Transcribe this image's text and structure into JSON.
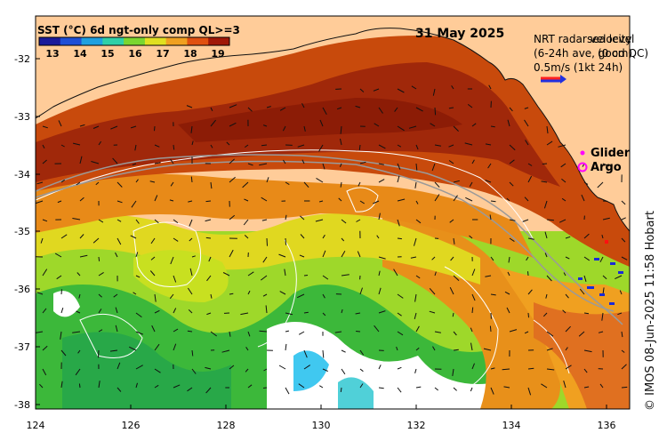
{
  "map": {
    "date_title": "31 May 2025",
    "legend_title": "SST (°C) 6d ngt-only comp QL>=3",
    "colorbar_ticks": [
      "13",
      "14",
      "15",
      "16",
      "17",
      "18",
      "19"
    ],
    "colorbar_colors": [
      "#1a1a9a",
      "#1f4fd6",
      "#1fa0e0",
      "#2fd0a8",
      "#7ad630",
      "#e0e020",
      "#f0a020",
      "#e05010",
      "#a01808"
    ],
    "vector_legend": {
      "line1": "NRT radar velocity",
      "line2": "(6-24h ave, good QC)",
      "line3": "0.5m/s (1kt 24h)",
      "overlay_line1": "sea level",
      "overlay_line2": "(0 cm)"
    },
    "markers": {
      "glider_label": "Glider",
      "argo_label": "Argo",
      "glider_color": "#ff00ff",
      "argo_color": "#ff00ff"
    },
    "credit": "© IMOS 08-Jun-2025 11:58 Hobart",
    "lon_ticks": [
      "124",
      "126",
      "128",
      "130",
      "132",
      "134",
      "136"
    ],
    "lat_ticks": [
      "-32",
      "-33",
      "-34",
      "-35",
      "-36",
      "-37",
      "-38"
    ],
    "land_color": "#ffcc99",
    "water_colors": {
      "warm": "#b02a08",
      "mid": "#e07a18",
      "cool": "#a8e020",
      "cold": "#30b830",
      "cloud": "#ffffff",
      "cyan": "#40c8f0"
    }
  }
}
